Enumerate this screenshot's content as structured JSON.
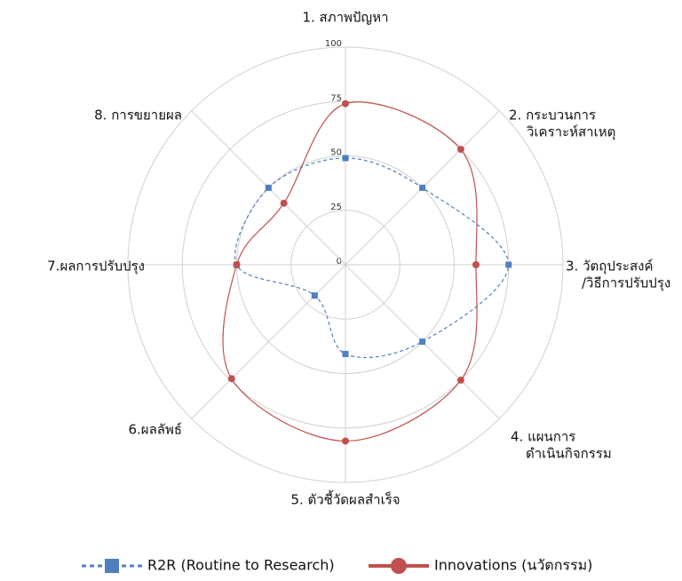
{
  "chart_data": {
    "type": "radar",
    "categories": [
      [
        "1. สภาพปัญหา"
      ],
      [
        "2. กระบวนการ",
        "วิเคราะห์สาเหตุ"
      ],
      [
        "3. วัตถุประสงค์",
        "/วิธีการปรับปรุง"
      ],
      [
        "4. แผนการ",
        "ดำเนินกิจกรรม"
      ],
      [
        "5. ตัวชี้วัดผลสำเร็จ"
      ],
      [
        "6.ผลลัพธ์"
      ],
      [
        "7.ผลการปรับปรุง"
      ],
      [
        "8. การขยายผล"
      ]
    ],
    "series": [
      {
        "name": "R2R (Routine to Research)",
        "color": "#4f7fbf",
        "dashed": true,
        "marker": "square",
        "values": [
          49,
          50,
          75,
          50,
          41,
          20,
          50,
          50
        ]
      },
      {
        "name": "Innovations (นวัตกรรม)",
        "color": "#c0504d",
        "dashed": false,
        "marker": "circle",
        "values": [
          74,
          75,
          60,
          75,
          81,
          74,
          50,
          40
        ]
      }
    ],
    "rlim": [
      0,
      100
    ],
    "rticks": [
      0,
      25,
      50,
      75,
      100
    ],
    "grid": true,
    "smooth": true,
    "legend": "bottom"
  }
}
